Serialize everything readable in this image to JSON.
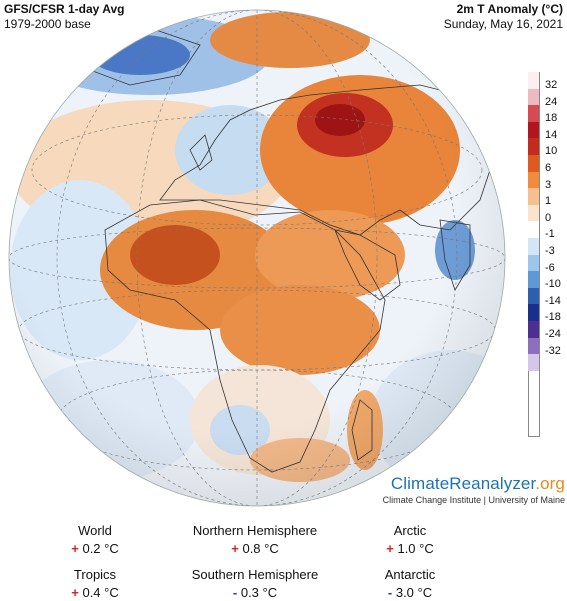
{
  "header": {
    "title": "GFS/CFSR 1-day Avg",
    "subtitle": "1979-2000 base",
    "variable": "2m T Anomaly (°C)",
    "date": "Sunday, May 16, 2021"
  },
  "legend": {
    "ticks": [
      "32",
      "24",
      "18",
      "14",
      "10",
      "6",
      "3",
      "1",
      "0",
      "-1",
      "-3",
      "-6",
      "-10",
      "-14",
      "-18",
      "-24",
      "-32"
    ],
    "colors": [
      "#fbeff2",
      "#efb9c2",
      "#d74a52",
      "#b1151f",
      "#c52b1d",
      "#e15a1d",
      "#f28b3c",
      "#f6bf8d",
      "#fbe4cd",
      "#ffffff",
      "#d4e6f5",
      "#9cc6ec",
      "#5f98d6",
      "#2d5fb0",
      "#1a2f8c",
      "#4d2f92",
      "#8c6fbd",
      "#d5c6ea"
    ]
  },
  "brand": {
    "name_main": "ClimateReanalyzer",
    "name_suffix": ".org",
    "subline": "Climate Change Institute | University of Maine"
  },
  "stats": {
    "world": {
      "label": "World",
      "sign": "+",
      "value": "0.2 °C"
    },
    "nh": {
      "label": "Northern Hemisphere",
      "sign": "+",
      "value": "0.8 °C"
    },
    "arctic": {
      "label": "Arctic",
      "sign": "+",
      "value": "1.0 °C"
    },
    "tropics": {
      "label": "Tropics",
      "sign": "+",
      "value": "0.4 °C"
    },
    "sh": {
      "label": "Southern Hemisphere",
      "sign": "-",
      "value": "0.3 °C"
    },
    "antarctic": {
      "label": "Antarctic",
      "sign": "-",
      "value": "3.0 °C"
    }
  },
  "map_colors": {
    "warm_strong": "#b81a1a",
    "warm": "#e0772b",
    "warm_light": "#f6c195",
    "neutral": "#f4f1ee",
    "cool_light": "#c8def2",
    "cool": "#6f9fd8",
    "cool_strong": "#24489a",
    "land_border": "#333333"
  }
}
